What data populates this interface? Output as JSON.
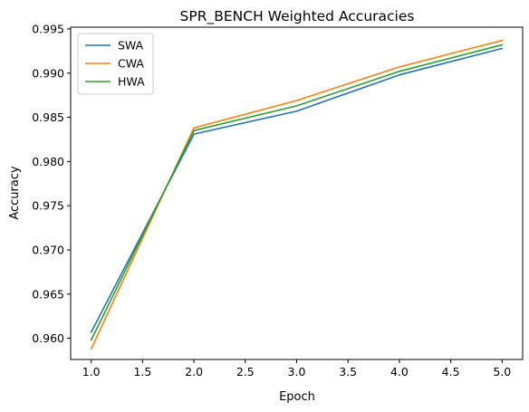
{
  "chart_data": {
    "type": "line",
    "title": "SPR_BENCH Weighted Accuracies",
    "xlabel": "Epoch",
    "ylabel": "Accuracy",
    "x": [
      1,
      2,
      3,
      4,
      5
    ],
    "xlim": [
      0.8,
      5.2
    ],
    "ylim": [
      0.9576,
      0.9952
    ],
    "xticks": [
      1.0,
      1.5,
      2.0,
      2.5,
      3.0,
      3.5,
      4.0,
      4.5,
      5.0
    ],
    "xtick_labels": [
      "1.0",
      "1.5",
      "2.0",
      "2.5",
      "3.0",
      "3.5",
      "4.0",
      "4.5",
      "5.0"
    ],
    "yticks": [
      0.96,
      0.965,
      0.97,
      0.975,
      0.98,
      0.985,
      0.99,
      0.995
    ],
    "ytick_labels": [
      "0.960",
      "0.965",
      "0.970",
      "0.975",
      "0.980",
      "0.985",
      "0.990",
      "0.995"
    ],
    "grid": false,
    "legend_position": "top-left",
    "series": [
      {
        "name": "SWA",
        "color": "#1f77b4",
        "values": [
          0.9607,
          0.9831,
          0.9857,
          0.9898,
          0.9928
        ]
      },
      {
        "name": "CWA",
        "color": "#ff7f0e",
        "values": [
          0.9588,
          0.9838,
          0.9869,
          0.9907,
          0.9937
        ]
      },
      {
        "name": "HWA",
        "color": "#2ca02c",
        "values": [
          0.9598,
          0.9835,
          0.9863,
          0.9902,
          0.9932
        ]
      }
    ]
  }
}
